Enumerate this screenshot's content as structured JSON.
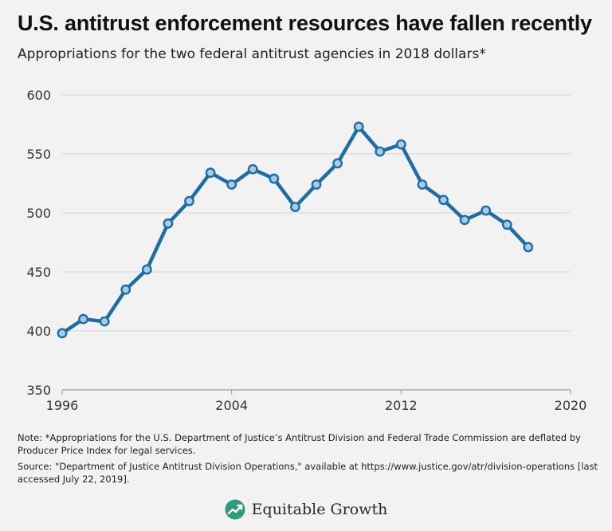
{
  "header": {
    "title": "U.S. antitrust enforcement resources have fallen recently",
    "subtitle": "Appropriations for the two federal antitrust agencies in 2018 dollars*"
  },
  "chart_data": {
    "type": "line",
    "title": "U.S. antitrust enforcement resources have fallen recently",
    "subtitle": "Appropriations for the two federal antitrust agencies in 2018 dollars*",
    "xlabel": "",
    "ylabel": "",
    "xlim": [
      1996,
      2020
    ],
    "ylim": [
      350,
      600
    ],
    "xticks": [
      1996,
      2004,
      2012,
      2020
    ],
    "yticks": [
      350,
      400,
      450,
      500,
      550,
      600
    ],
    "grid": "horizontal",
    "series": [
      {
        "name": "Appropriations",
        "color": "#1e6ea5",
        "marker_fill": "#a9cbe6",
        "x": [
          1996,
          1997,
          1998,
          1999,
          2000,
          2001,
          2002,
          2003,
          2004,
          2005,
          2006,
          2007,
          2008,
          2009,
          2010,
          2011,
          2012,
          2013,
          2014,
          2015,
          2016,
          2017,
          2018
        ],
        "values": [
          398,
          410,
          408,
          435,
          452,
          491,
          510,
          534,
          524,
          537,
          529,
          505,
          524,
          542,
          573,
          552,
          558,
          524,
          511,
          494,
          502,
          490,
          471
        ]
      }
    ]
  },
  "notes": {
    "note": "Note: *Appropriations for the U.S. Department of Justice’s Antitrust Division and Federal Trade Commission are deflated by Producer Price Index for legal services.",
    "source": "Source: \"Department of Justice Antitrust Division Operations,\" available at https://www.justice.gov/atr/division-operations [last accessed July 22, 2019]."
  },
  "brand": {
    "name": "Equitable Growth",
    "color": "#2e9b7a"
  }
}
